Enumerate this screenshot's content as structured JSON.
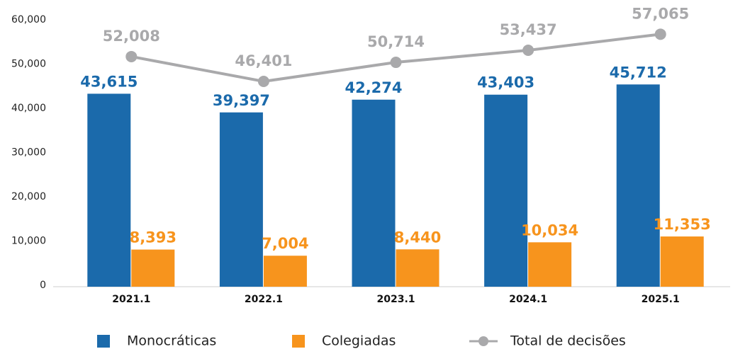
{
  "chart_data": {
    "type": "bar",
    "categories": [
      "2021.1",
      "2022.1",
      "2023.1",
      "2024.1",
      "2025.1"
    ],
    "series": [
      {
        "name": "Monocráticas",
        "color": "#1b6aab",
        "values": [
          43615,
          39397,
          42274,
          43403,
          45712
        ],
        "value_labels": [
          "43,615",
          "39,397",
          "42,274",
          "43,403",
          "45,712"
        ]
      },
      {
        "name": "Colegiadas",
        "color": "#f7941d",
        "values": [
          8393,
          7004,
          8440,
          10034,
          11353
        ],
        "value_labels": [
          "8,393",
          "7,004",
          "8,440",
          "10,034",
          "11,353"
        ]
      },
      {
        "name": "Total de decisões",
        "type": "line",
        "color": "#a9a9ab",
        "values": [
          52008,
          46401,
          50714,
          53437,
          57065
        ],
        "value_labels": [
          "52,008",
          "46,401",
          "50,714",
          "53,437",
          "57,065"
        ]
      }
    ],
    "ylim": [
      0,
      60000
    ],
    "yticks": [
      0,
      {
        "value": 10000,
        "label": "10,000"
      },
      {
        "value": 20000,
        "label": "20,000"
      },
      {
        "value": 30000,
        "label": "30,000"
      },
      {
        "value": 40000,
        "label": "40,000"
      },
      {
        "value": 50000,
        "label": "50,000"
      },
      {
        "value": 60000,
        "label": "60,000"
      }
    ],
    "grid": false,
    "legend": "bottom"
  }
}
